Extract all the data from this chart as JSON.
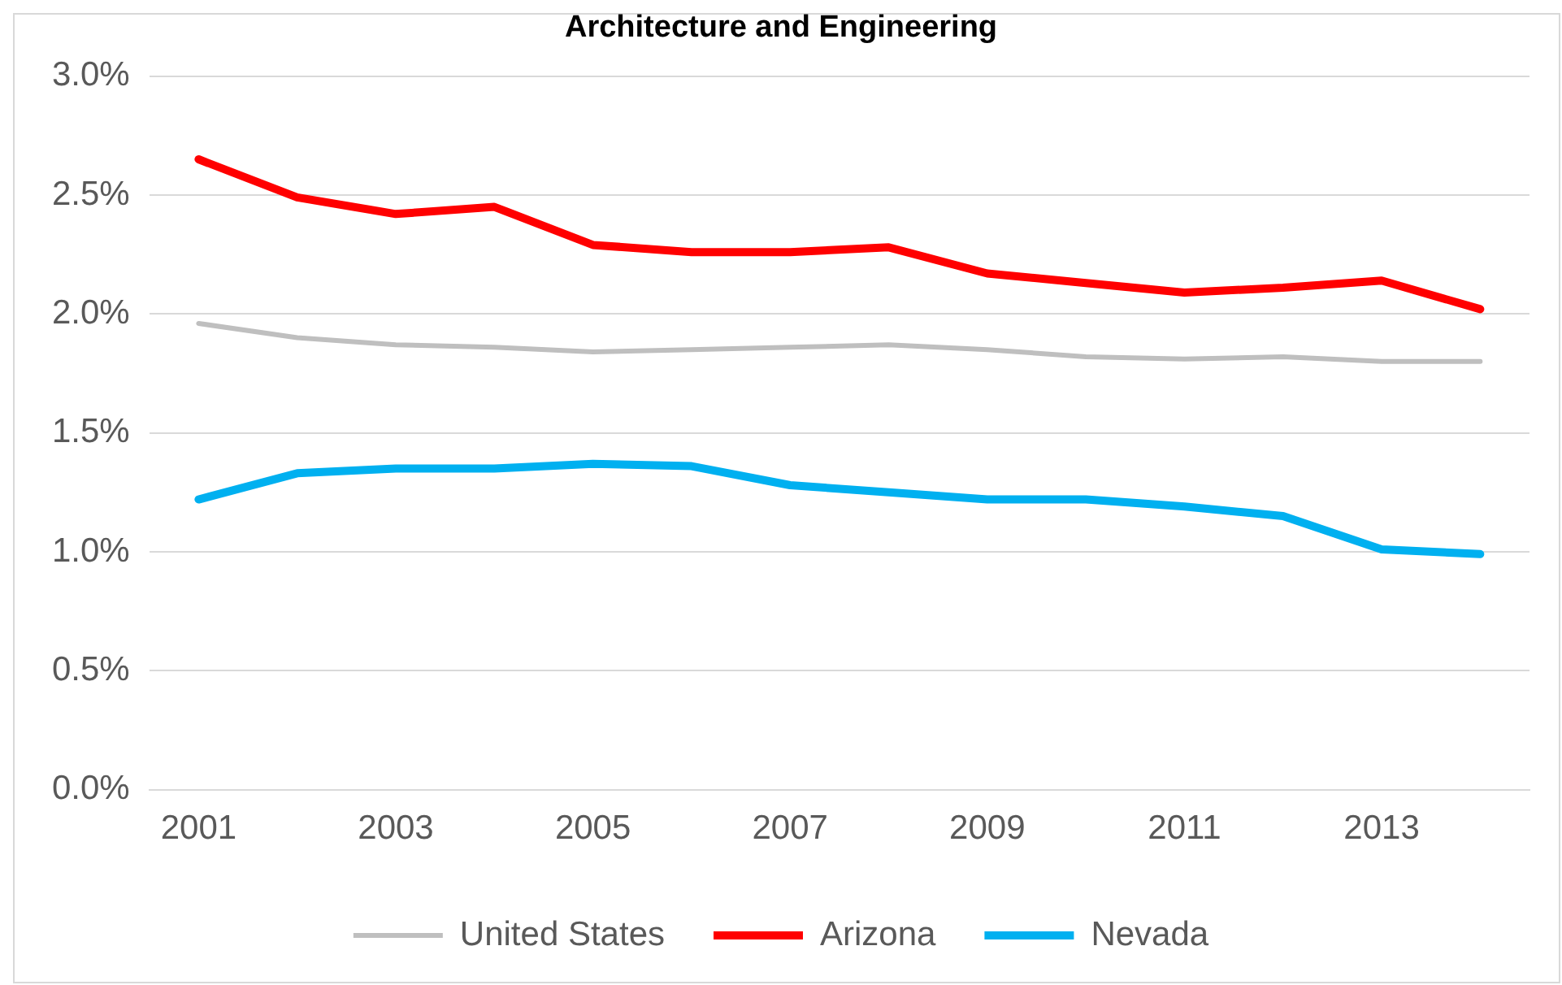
{
  "chart_data": {
    "type": "line",
    "title": "Architecture and Engineering",
    "categories": [
      "2001",
      null,
      "2003",
      null,
      "2005",
      null,
      "2007",
      null,
      "2009",
      null,
      "2011",
      null,
      "2013",
      null
    ],
    "series": [
      {
        "name": "United States",
        "color": "#bfbfbf",
        "values": [
          1.96,
          1.9,
          1.87,
          1.86,
          1.84,
          1.85,
          1.86,
          1.87,
          1.85,
          1.82,
          1.81,
          1.82,
          1.8,
          1.8
        ]
      },
      {
        "name": "Arizona",
        "color": "#ff0000",
        "values": [
          2.65,
          2.49,
          2.42,
          2.45,
          2.29,
          2.26,
          2.26,
          2.28,
          2.17,
          2.13,
          2.09,
          2.11,
          2.14,
          2.02
        ]
      },
      {
        "name": "Nevada",
        "color": "#00b0f0",
        "values": [
          1.22,
          1.33,
          1.35,
          1.35,
          1.37,
          1.36,
          1.28,
          1.25,
          1.22,
          1.22,
          1.19,
          1.15,
          1.01,
          0.99
        ]
      }
    ],
    "ylim": [
      0,
      3
    ],
    "yticks": [
      {
        "value": 0,
        "label": "0.0%"
      },
      {
        "value": 0.5,
        "label": "0.5%"
      },
      {
        "value": 1,
        "label": "1.0%"
      },
      {
        "value": 1.5,
        "label": "1.5%"
      },
      {
        "value": 2,
        "label": "2.0%"
      },
      {
        "value": 2.5,
        "label": "2.5%"
      },
      {
        "value": 3,
        "label": "3.0%"
      }
    ],
    "grid": "y",
    "legend": "bottom",
    "marker": "none",
    "line_style": "solid"
  }
}
